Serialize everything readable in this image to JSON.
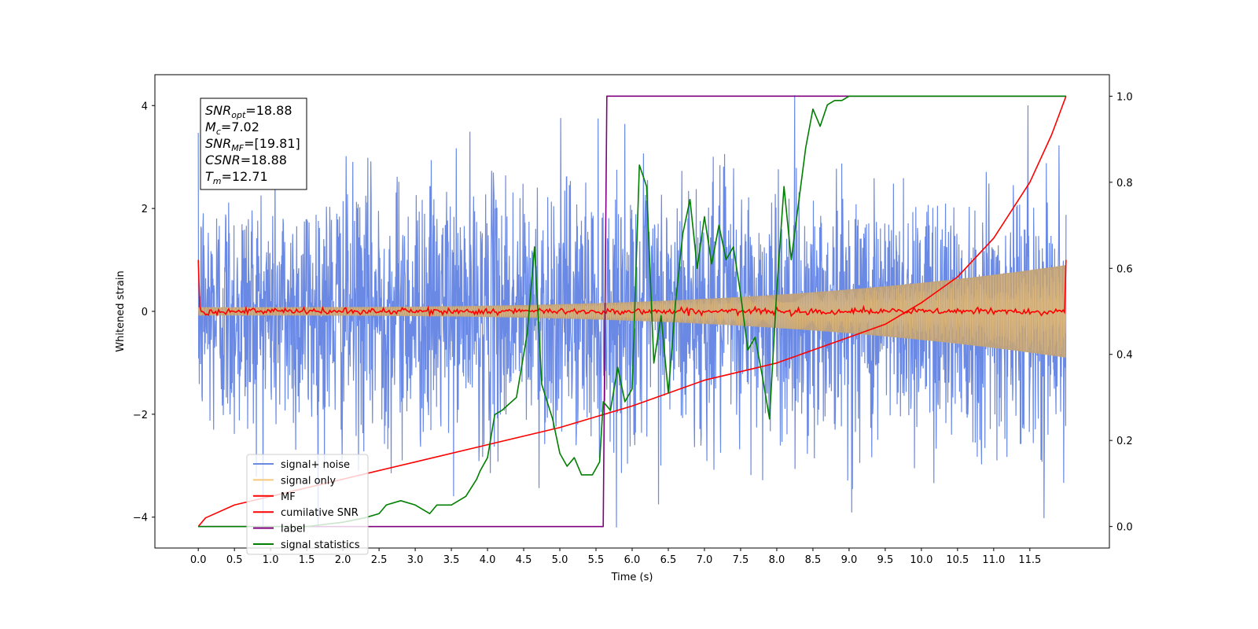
{
  "chart_data": {
    "type": "line",
    "title": "",
    "xlabel": "Time (s)",
    "ylabel": "Whitened strain",
    "y2label": "",
    "xlim": [
      -0.6,
      12.6
    ],
    "ylim": [
      -4.6,
      4.6
    ],
    "y2lim": [
      -0.05,
      1.05
    ],
    "x_ticks": [
      0.0,
      0.5,
      1.0,
      1.5,
      2.0,
      2.5,
      3.0,
      3.5,
      4.0,
      4.5,
      5.0,
      5.5,
      6.0,
      6.5,
      7.0,
      7.5,
      8.0,
      8.5,
      9.0,
      9.5,
      10.0,
      10.5,
      11.0,
      11.5
    ],
    "x_tick_labels": [
      "0.0",
      "0.5",
      "1.0",
      "1.5",
      "2.0",
      "2.5",
      "3.0",
      "3.5",
      "4.0",
      "4.5",
      "5.0",
      "5.5",
      "6.0",
      "6.5",
      "7.0",
      "7.5",
      "8.0",
      "8.5",
      "9.0",
      "9.5",
      "10.0",
      "10.5",
      "11.0",
      "11.5"
    ],
    "y_ticks": [
      -4,
      -2,
      0,
      2,
      4
    ],
    "y_tick_labels": [
      "−4",
      "−2",
      "0",
      "2",
      "4"
    ],
    "y2_ticks": [
      0.0,
      0.2,
      0.4,
      0.6,
      0.8,
      1.0
    ],
    "y2_tick_labels": [
      "0.0",
      "0.2",
      "0.4",
      "0.6",
      "0.8",
      "1.0"
    ],
    "grid": false,
    "legend_position": "lower-left",
    "info_box": {
      "position": "top-left",
      "lines": [
        {
          "label": "SNR",
          "sub": "opt",
          "value": "=18.88"
        },
        {
          "label": "M",
          "sub": "c",
          "value": "=7.02"
        },
        {
          "label": "SNR",
          "sub": "MF",
          "value": "=[19.81]"
        },
        {
          "label": "CSNR",
          "sub": "",
          "value": "=18.88"
        },
        {
          "label": "T",
          "sub": "m",
          "value": "=12.71"
        }
      ]
    },
    "series": [
      {
        "name": "signal+ noise",
        "color": "#6a89e4",
        "axis": "left",
        "kind": "noise",
        "time_range": [
          0,
          12.0
        ],
        "approx_amplitude_range": [
          -4.2,
          4.2
        ]
      },
      {
        "name": "signal only",
        "color": "#f5c87a",
        "axis": "left",
        "kind": "chirp",
        "time_range": [
          0,
          12.0
        ],
        "amplitude_start": 0.08,
        "amplitude_end": 0.9
      },
      {
        "name": "MF",
        "color": "#ff0000",
        "axis": "left",
        "kind": "mf",
        "time_range": [
          0,
          12.0
        ],
        "edge_values": [
          1.0,
          1.0
        ],
        "baseline": 0.0
      },
      {
        "name": "cumilative SNR",
        "color": "#ff0000",
        "axis": "right",
        "x": [
          0.0,
          0.1,
          0.5,
          1.0,
          2.0,
          3.0,
          4.0,
          5.0,
          6.0,
          7.0,
          8.0,
          8.5,
          9.0,
          9.5,
          10.0,
          10.5,
          11.0,
          11.5,
          11.8,
          12.0
        ],
        "values": [
          0.0,
          0.02,
          0.05,
          0.07,
          0.11,
          0.15,
          0.19,
          0.23,
          0.28,
          0.34,
          0.38,
          0.41,
          0.44,
          0.47,
          0.52,
          0.58,
          0.67,
          0.8,
          0.91,
          1.0
        ]
      },
      {
        "name": "label",
        "color": "#800080",
        "axis": "right",
        "x": [
          0.0,
          5.6,
          5.65,
          12.0
        ],
        "values": [
          0.0,
          0.0,
          1.0,
          1.0
        ]
      },
      {
        "name": "signal statistics",
        "color": "#007f00",
        "axis": "right",
        "x": [
          0.0,
          0.5,
          1.0,
          1.5,
          2.0,
          2.3,
          2.5,
          2.6,
          2.8,
          3.0,
          3.2,
          3.3,
          3.5,
          3.7,
          3.85,
          3.9,
          4.0,
          4.1,
          4.2,
          4.4,
          4.55,
          4.65,
          4.75,
          4.9,
          5.0,
          5.1,
          5.2,
          5.3,
          5.45,
          5.55,
          5.6,
          5.7,
          5.8,
          5.9,
          6.0,
          6.1,
          6.2,
          6.3,
          6.4,
          6.5,
          6.6,
          6.7,
          6.8,
          6.9,
          7.0,
          7.1,
          7.2,
          7.3,
          7.4,
          7.5,
          7.6,
          7.7,
          7.8,
          7.9,
          8.0,
          8.1,
          8.2,
          8.3,
          8.4,
          8.5,
          8.6,
          8.7,
          8.8,
          8.9,
          9.0,
          9.5,
          10.0,
          11.0,
          11.5,
          12.0
        ],
        "values": [
          0.0,
          0.0,
          0.0,
          0.0,
          0.01,
          0.02,
          0.03,
          0.05,
          0.06,
          0.05,
          0.03,
          0.05,
          0.05,
          0.07,
          0.11,
          0.13,
          0.16,
          0.26,
          0.27,
          0.3,
          0.45,
          0.65,
          0.33,
          0.25,
          0.17,
          0.14,
          0.16,
          0.12,
          0.12,
          0.15,
          0.29,
          0.27,
          0.37,
          0.29,
          0.32,
          0.84,
          0.79,
          0.38,
          0.49,
          0.31,
          0.52,
          0.68,
          0.76,
          0.6,
          0.72,
          0.61,
          0.7,
          0.62,
          0.65,
          0.54,
          0.41,
          0.44,
          0.35,
          0.25,
          0.55,
          0.79,
          0.62,
          0.75,
          0.88,
          0.97,
          0.93,
          0.98,
          0.99,
          0.99,
          1.0,
          1.0,
          1.0,
          1.0,
          1.0,
          1.0
        ]
      }
    ]
  }
}
